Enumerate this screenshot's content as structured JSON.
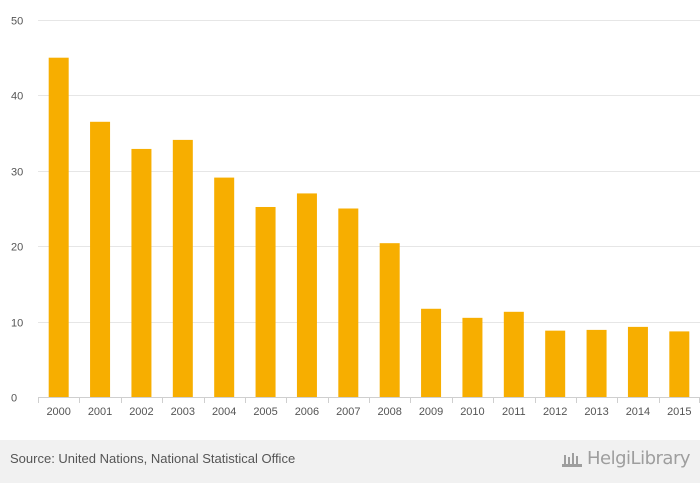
{
  "chart_data": {
    "type": "bar",
    "title": "",
    "xlabel": "",
    "ylabel": "",
    "categories": [
      "2000",
      "2001",
      "2002",
      "2003",
      "2004",
      "2005",
      "2006",
      "2007",
      "2008",
      "2009",
      "2010",
      "2011",
      "2012",
      "2013",
      "2014",
      "2015"
    ],
    "values": [
      45.0,
      36.5,
      32.9,
      34.1,
      29.1,
      25.2,
      27.0,
      25.0,
      20.4,
      11.7,
      10.5,
      11.3,
      8.8,
      8.9,
      9.3,
      8.7
    ],
    "ylim": [
      0,
      50
    ],
    "yticks": [
      0,
      10,
      20,
      30,
      40,
      50
    ],
    "grid": true,
    "bar_color": "#f7ae00"
  },
  "footer": {
    "source": "Source: United Nations, National Statistical Office",
    "logo_text": "HelgiLibrary"
  },
  "colors": {
    "footer_bg": "#f1f1f1",
    "text": "#555555",
    "logo": "#9e9e9e"
  }
}
